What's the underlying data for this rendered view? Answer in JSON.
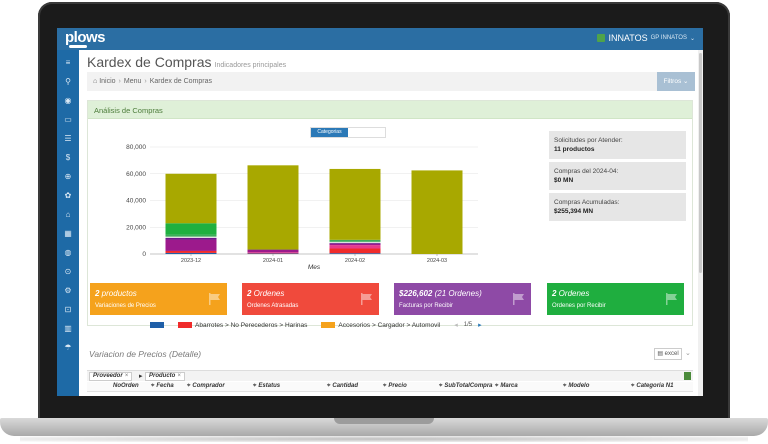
{
  "app": {
    "logo": "plows",
    "brand": "INNATOS",
    "brand_sub": "GP INNATOS",
    "page_title": "Kardex de Compras",
    "page_subtitle": "Indicadores principales"
  },
  "breadcrumb": {
    "items": [
      "Inicio",
      "Menu",
      "Kardex de Compras"
    ]
  },
  "filters_button": "Filtros",
  "sidebar_icons": [
    "menu-icon",
    "search-icon",
    "eye-icon",
    "folder-icon",
    "list-icon",
    "dollar-icon",
    "globe-icon",
    "users-icon",
    "bank-icon",
    "grid-icon",
    "earth-icon",
    "settings-icon",
    "gear-icon",
    "lock-icon",
    "book-icon",
    "umbrella-icon"
  ],
  "analysis": {
    "title": "Análisis de Compras",
    "tab_label": "Categorias",
    "legend": [
      {
        "label": "",
        "color": "#1f5fa8"
      },
      {
        "label": "Abarrotes > No Perecederos > Harinas",
        "color": "#f02b2b"
      },
      {
        "label": "Accesorios > Cargador > Automovil",
        "color": "#f5a21c"
      }
    ],
    "legend_pager": "1/5"
  },
  "stats": [
    {
      "label": "Solicitudes por Atender:",
      "value": "11 productos"
    },
    {
      "label": "Compras del 2024-04:",
      "value": "$0 MN"
    },
    {
      "label": "Compras Acumuladas:",
      "value": "$255,394 MN"
    }
  ],
  "kpis": [
    {
      "value": "2 productos",
      "sub": "Variaciones de Precios",
      "color": "#f5a21c"
    },
    {
      "value": "2 Ordenes",
      "sub": "Ordenes Atrasadas",
      "color": "#f04a3c"
    },
    {
      "value": "$226,602",
      "value_extra": "(21 Ordenes)",
      "sub": "Facturas por Recibir",
      "color": "#8e4aa6"
    },
    {
      "value": "2 Ordenes",
      "sub": "Ordenes por Recibir",
      "color": "#1fae3f"
    }
  ],
  "detail": {
    "title": "Variacion de Precios (Detalle)",
    "excel_label": "excel",
    "group_chips": [
      "Proveedor",
      "Producto"
    ],
    "columns": [
      "NoOrden",
      "Fecha",
      "Comprador",
      "Estatus",
      "Cantidad",
      "Precio",
      "SubTotalCompra",
      "Marca",
      "Modelo",
      "Categoria N1"
    ]
  },
  "chart_data": {
    "type": "bar",
    "stacked": true,
    "xlabel": "Mes",
    "ylabel": "",
    "ylim": [
      0,
      80000
    ],
    "yticks": [
      0,
      20000,
      40000,
      60000,
      80000
    ],
    "ytick_labels": [
      "0",
      "20,000",
      "40,000",
      "60,000",
      "80,000"
    ],
    "categories": [
      "2023-12",
      "2024-01",
      "2024-02",
      "2024-03"
    ],
    "series": [
      {
        "name": "",
        "color": "#1f5fa8",
        "values": [
          800,
          400,
          600,
          0
        ]
      },
      {
        "name": "Abarrotes > No Perecederos > Harinas",
        "color": "#f02b2b",
        "values": [
          1500,
          300,
          3500,
          0
        ]
      },
      {
        "name": "",
        "color": "#e83a8c",
        "values": [
          0,
          600,
          2500,
          0
        ]
      },
      {
        "name": "",
        "color": "#9c1a8c",
        "values": [
          8500,
          1700,
          1000,
          0
        ]
      },
      {
        "name": "",
        "color": "#6a1a8a",
        "values": [
          1200,
          300,
          600,
          0
        ]
      },
      {
        "name": "",
        "color": "#e0e0e0",
        "values": [
          1000,
          0,
          900,
          0
        ]
      },
      {
        "name": "",
        "color": "#3cae5a",
        "values": [
          1500,
          0,
          1500,
          0
        ]
      },
      {
        "name": "",
        "color": "#1fb040",
        "values": [
          8500,
          0,
          0,
          0
        ]
      },
      {
        "name": "Accesorios > Cargador > Automovil",
        "color": "#a8a800",
        "values": [
          37000,
          63000,
          53000,
          62500
        ]
      }
    ]
  }
}
